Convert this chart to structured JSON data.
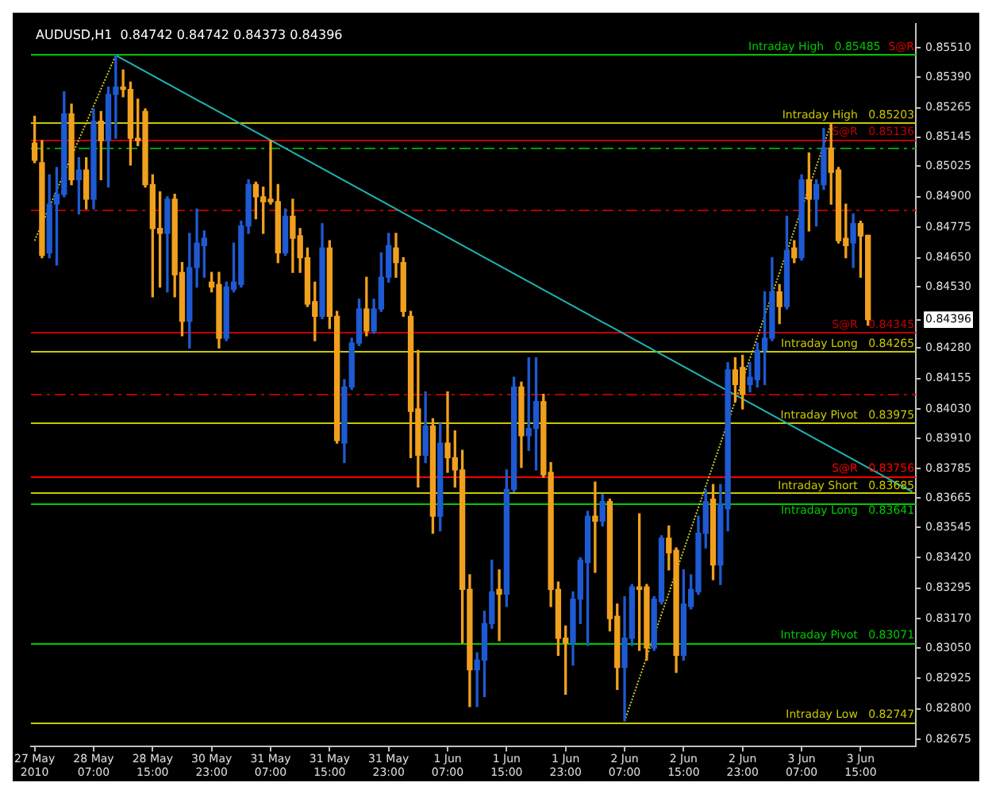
{
  "chart_data": {
    "type": "candlestick",
    "title": "AUDUSD,H1  0.84742 0.84742 0.84373 0.84396",
    "categories": [
      "27 May 2010",
      null,
      null,
      null,
      null,
      null,
      null,
      null,
      "28 May 07:00",
      null,
      null,
      null,
      null,
      null,
      null,
      null,
      "28 May 15:00",
      null,
      null,
      null,
      null,
      null,
      null,
      null,
      "30 May 23:00",
      null,
      null,
      null,
      null,
      null,
      null,
      null,
      "31 May 07:00",
      null,
      null,
      null,
      null,
      null,
      null,
      null,
      "31 May 15:00",
      null,
      null,
      null,
      null,
      null,
      null,
      null,
      "31 May 23:00",
      null,
      null,
      null,
      null,
      null,
      null,
      null,
      "1 Jun 07:00",
      null,
      null,
      null,
      null,
      null,
      null,
      null,
      "1 Jun 15:00",
      null,
      null,
      null,
      null,
      null,
      null,
      null,
      "1 Jun 23:00",
      null,
      null,
      null,
      null,
      null,
      null,
      null,
      "2 Jun 07:00",
      null,
      null,
      null,
      null,
      null,
      null,
      null,
      "2 Jun 15:00",
      null,
      null,
      null,
      null,
      null,
      null,
      null,
      "2 Jun 23:00",
      null,
      null,
      null,
      null,
      null,
      null,
      null,
      "3 Jun 07:00",
      null,
      null,
      null,
      null,
      null,
      null,
      null,
      "3 Jun 15:00",
      null,
      null,
      null,
      null,
      null,
      null,
      null
    ],
    "ohlc": [
      [
        0.8512,
        0.8523,
        0.8504,
        0.8505
      ],
      [
        0.8504,
        0.8513,
        0.8465,
        0.8466
      ],
      [
        0.8467,
        0.8499,
        0.8465,
        0.8487
      ],
      [
        0.8487,
        0.8502,
        0.8462,
        0.8491
      ],
      [
        0.8491,
        0.8533,
        0.849,
        0.8524
      ],
      [
        0.8524,
        0.8528,
        0.8495,
        0.8497
      ],
      [
        0.8497,
        0.8506,
        0.8483,
        0.8501
      ],
      [
        0.8501,
        0.8506,
        0.8485,
        0.8489
      ],
      [
        0.8489,
        0.8526,
        0.8485,
        0.8521
      ],
      [
        0.8521,
        0.8525,
        0.8497,
        0.8513
      ],
      [
        0.8513,
        0.8535,
        0.8494,
        0.8532
      ],
      [
        0.8532,
        0.8548,
        0.8514,
        0.8535
      ],
      [
        0.8535,
        0.8542,
        0.8531,
        0.8534
      ],
      [
        0.8534,
        0.8537,
        0.8503,
        0.8514
      ],
      [
        0.8514,
        0.853,
        0.8511,
        0.8513
      ],
      [
        0.8525,
        0.8526,
        0.8494,
        0.8495
      ],
      [
        0.8495,
        0.8499,
        0.8449,
        0.8477
      ],
      [
        0.8477,
        0.8492,
        0.8453,
        0.8475
      ],
      [
        0.8475,
        0.849,
        0.8451,
        0.8489
      ],
      [
        0.8489,
        0.8491,
        0.8449,
        0.8458
      ],
      [
        0.8459,
        0.8463,
        0.8433,
        0.8439
      ],
      [
        0.8439,
        0.8475,
        0.8428,
        0.8461
      ],
      [
        0.8461,
        0.8485,
        0.8453,
        0.8471
      ],
      [
        0.847,
        0.8476,
        0.8457,
        0.8473
      ],
      [
        0.8455,
        0.8459,
        0.8451,
        0.8453
      ],
      [
        0.8454,
        0.8459,
        0.8428,
        0.8432
      ],
      [
        0.8432,
        0.8455,
        0.8431,
        0.8453
      ],
      [
        0.8452,
        0.8471,
        0.8451,
        0.8455
      ],
      [
        0.8454,
        0.848,
        0.8453,
        0.8478
      ],
      [
        0.8478,
        0.8497,
        0.8475,
        0.8495
      ],
      [
        0.8495,
        0.8496,
        0.8481,
        0.849
      ],
      [
        0.849,
        0.8494,
        0.8475,
        0.8488
      ],
      [
        0.8489,
        0.8513,
        0.8487,
        0.8488
      ],
      [
        0.8488,
        0.8495,
        0.8463,
        0.8467
      ],
      [
        0.8467,
        0.8485,
        0.8466,
        0.8482
      ],
      [
        0.8482,
        0.8489,
        0.8459,
        0.8473
      ],
      [
        0.8474,
        0.8477,
        0.8459,
        0.8465
      ],
      [
        0.8465,
        0.8469,
        0.8445,
        0.8446
      ],
      [
        0.8447,
        0.8455,
        0.8431,
        0.8441
      ],
      [
        0.8441,
        0.8479,
        0.844,
        0.8469
      ],
      [
        0.8469,
        0.8472,
        0.8436,
        0.8441
      ],
      [
        0.8441,
        0.8443,
        0.8389,
        0.839
      ],
      [
        0.8389,
        0.8415,
        0.8381,
        0.8412
      ],
      [
        0.8412,
        0.8432,
        0.8411,
        0.843
      ],
      [
        0.843,
        0.8448,
        0.8429,
        0.8444
      ],
      [
        0.8444,
        0.8457,
        0.8433,
        0.8435
      ],
      [
        0.8435,
        0.8448,
        0.8434,
        0.8444
      ],
      [
        0.8444,
        0.8467,
        0.8443,
        0.8457
      ],
      [
        0.8457,
        0.8475,
        0.8455,
        0.847
      ],
      [
        0.8469,
        0.8475,
        0.8457,
        0.8463
      ],
      [
        0.8463,
        0.8465,
        0.8441,
        0.8443
      ],
      [
        0.8441,
        0.8443,
        0.8383,
        0.8402
      ],
      [
        0.8403,
        0.8427,
        0.8371,
        0.8384
      ],
      [
        0.8384,
        0.841,
        0.8381,
        0.8396
      ],
      [
        0.8396,
        0.8399,
        0.8352,
        0.8359
      ],
      [
        0.8359,
        0.8397,
        0.8353,
        0.8389
      ],
      [
        0.8389,
        0.841,
        0.8377,
        0.8383
      ],
      [
        0.8383,
        0.8394,
        0.8371,
        0.8378
      ],
      [
        0.8378,
        0.8386,
        0.8307,
        0.8329
      ],
      [
        0.8329,
        0.8335,
        0.8281,
        0.8296
      ],
      [
        0.8296,
        0.8303,
        0.8281,
        0.83
      ],
      [
        0.83,
        0.832,
        0.8285,
        0.8315
      ],
      [
        0.8315,
        0.8341,
        0.8313,
        0.8328
      ],
      [
        0.8329,
        0.8337,
        0.8308,
        0.8327
      ],
      [
        0.8327,
        0.8378,
        0.8322,
        0.837
      ],
      [
        0.837,
        0.8416,
        0.8369,
        0.8412
      ],
      [
        0.8412,
        0.8414,
        0.8379,
        0.8392
      ],
      [
        0.8392,
        0.8424,
        0.8386,
        0.8395
      ],
      [
        0.8395,
        0.8424,
        0.8378,
        0.8406
      ],
      [
        0.8406,
        0.8409,
        0.8375,
        0.8376
      ],
      [
        0.8377,
        0.8381,
        0.8322,
        0.8329
      ],
      [
        0.8329,
        0.8332,
        0.8302,
        0.8309
      ],
      [
        0.8309,
        0.8314,
        0.8286,
        0.8307
      ],
      [
        0.8307,
        0.8328,
        0.8298,
        0.8325
      ],
      [
        0.8325,
        0.8342,
        0.8315,
        0.8341
      ],
      [
        0.834,
        0.8361,
        0.8306,
        0.8359
      ],
      [
        0.8359,
        0.8373,
        0.8336,
        0.8357
      ],
      [
        0.8357,
        0.8368,
        0.8355,
        0.8365
      ],
      [
        0.8365,
        0.8366,
        0.8312,
        0.8317
      ],
      [
        0.8318,
        0.8323,
        0.8288,
        0.8297
      ],
      [
        0.8297,
        0.8326,
        0.8275,
        0.8309
      ],
      [
        0.8309,
        0.8331,
        0.8306,
        0.833
      ],
      [
        0.833,
        0.836,
        0.8304,
        0.8329
      ],
      [
        0.833,
        0.8331,
        0.83,
        0.8305
      ],
      [
        0.8305,
        0.8326,
        0.8304,
        0.8325
      ],
      [
        0.8324,
        0.8351,
        0.8323,
        0.835
      ],
      [
        0.835,
        0.8355,
        0.8337,
        0.8344
      ],
      [
        0.8345,
        0.8346,
        0.8295,
        0.8302
      ],
      [
        0.8302,
        0.8337,
        0.83,
        0.8323
      ],
      [
        0.8322,
        0.8335,
        0.8321,
        0.8329
      ],
      [
        0.8328,
        0.8359,
        0.8327,
        0.8352
      ],
      [
        0.8352,
        0.837,
        0.8346,
        0.8365
      ],
      [
        0.8366,
        0.8372,
        0.8333,
        0.8339
      ],
      [
        0.8339,
        0.8372,
        0.8331,
        0.8364
      ],
      [
        0.8362,
        0.8422,
        0.8353,
        0.8419
      ],
      [
        0.8419,
        0.8424,
        0.8406,
        0.8413
      ],
      [
        0.842,
        0.8425,
        0.8403,
        0.8409
      ],
      [
        0.8413,
        0.8422,
        0.841,
        0.8416
      ],
      [
        0.8415,
        0.843,
        0.8412,
        0.8427
      ],
      [
        0.8427,
        0.8451,
        0.8413,
        0.8432
      ],
      [
        0.8432,
        0.8465,
        0.8431,
        0.8451
      ],
      [
        0.8451,
        0.8454,
        0.8438,
        0.8445
      ],
      [
        0.8445,
        0.8482,
        0.8444,
        0.8468
      ],
      [
        0.8469,
        0.8472,
        0.8463,
        0.8465
      ],
      [
        0.8465,
        0.8499,
        0.8464,
        0.8497
      ],
      [
        0.8497,
        0.8508,
        0.8476,
        0.8489
      ],
      [
        0.8489,
        0.8497,
        0.8478,
        0.8495
      ],
      [
        0.8495,
        0.8518,
        0.8493,
        0.851
      ],
      [
        0.851,
        0.852,
        0.8487,
        0.85
      ],
      [
        0.8501,
        0.8502,
        0.8471,
        0.8472
      ],
      [
        0.8473,
        0.8487,
        0.8465,
        0.847
      ],
      [
        0.8471,
        0.8483,
        0.8461,
        0.8479
      ],
      [
        0.8479,
        0.848,
        0.8457,
        0.8474
      ],
      [
        0.84742,
        0.84742,
        0.84373,
        0.84396
      ],
      null,
      null,
      null,
      null,
      null,
      null
    ],
    "colors": [
      "#f0a01e",
      "#f0a01e",
      "#1e5ad2",
      "#1e5ad2",
      "#1e5ad2",
      "#f0a01e",
      "#1e5ad2",
      "#f0a01e",
      "#1e5ad2",
      "#f0a01e",
      "#1e5ad2",
      "#1e5ad2",
      "#f0a01e",
      "#f0a01e",
      "#f0a01e",
      "#f0a01e",
      "#f0a01e",
      "#f0a01e",
      "#1e5ad2",
      "#f0a01e",
      "#f0a01e",
      "#1e5ad2",
      "#1e5ad2",
      "#1e5ad2",
      "#f0a01e",
      "#f0a01e",
      "#1e5ad2",
      "#1e5ad2",
      "#1e5ad2",
      "#1e5ad2",
      "#f0a01e",
      "#f0a01e",
      "#f0a01e",
      "#f0a01e",
      "#1e5ad2",
      "#f0a01e",
      "#f0a01e",
      "#f0a01e",
      "#f0a01e",
      "#1e5ad2",
      "#f0a01e",
      "#f0a01e",
      "#1e5ad2",
      "#1e5ad2",
      "#1e5ad2",
      "#f0a01e",
      "#1e5ad2",
      "#1e5ad2",
      "#1e5ad2",
      "#f0a01e",
      "#f0a01e",
      "#f0a01e",
      "#f0a01e",
      "#1e5ad2",
      "#f0a01e",
      "#1e5ad2",
      "#f0a01e",
      "#f0a01e",
      "#f0a01e",
      "#f0a01e",
      "#1e5ad2",
      "#1e5ad2",
      "#1e5ad2",
      "#f0a01e",
      "#1e5ad2",
      "#1e5ad2",
      "#f0a01e",
      "#1e5ad2",
      "#1e5ad2",
      "#f0a01e",
      "#f0a01e",
      "#f0a01e",
      "#f0a01e",
      "#1e5ad2",
      "#1e5ad2",
      "#1e5ad2",
      "#f0a01e",
      "#1e5ad2",
      "#f0a01e",
      "#f0a01e",
      "#1e5ad2",
      "#1e5ad2",
      "#f0a01e",
      "#f0a01e",
      "#1e5ad2",
      "#1e5ad2",
      "#f0a01e",
      "#f0a01e",
      "#1e5ad2",
      "#1e5ad2",
      "#1e5ad2",
      "#1e5ad2",
      "#f0a01e",
      "#1e5ad2",
      "#1e5ad2",
      "#f0a01e",
      "#f0a01e",
      "#1e5ad2",
      "#1e5ad2",
      "#1e5ad2",
      "#1e5ad2",
      "#f0a01e",
      "#1e5ad2",
      "#f0a01e",
      "#1e5ad2",
      "#f0a01e",
      "#1e5ad2",
      "#1e5ad2",
      "#f0a01e",
      "#f0a01e",
      "#f0a01e",
      "#1e5ad2",
      "#f0a01e",
      "#f0a01e",
      null,
      null,
      null,
      null,
      null,
      null
    ],
    "series": [
      {
        "type": "line",
        "color": "#20b4b4",
        "values": [
          null,
          null,
          null,
          null,
          null,
          null,
          null,
          null,
          null,
          null,
          null,
          0.8548,
          null,
          null,
          null,
          null,
          null,
          null,
          null,
          null,
          null,
          null,
          null,
          null,
          null,
          null,
          null,
          null,
          null,
          null,
          null,
          null,
          null,
          null,
          null,
          null,
          null,
          null,
          null,
          null,
          null,
          null,
          null,
          null,
          null,
          null,
          null,
          null,
          null,
          null,
          null,
          null,
          null,
          null,
          null,
          null,
          null,
          null,
          null,
          null,
          null,
          null,
          null,
          null,
          null,
          null,
          null,
          null,
          null,
          null,
          null,
          null,
          null,
          null,
          null,
          null,
          null,
          null,
          null,
          null,
          null,
          null,
          null,
          null,
          null,
          null,
          null,
          null,
          null,
          null,
          null,
          null,
          null,
          null,
          null,
          null,
          null,
          null,
          null,
          null,
          null,
          null,
          null,
          null,
          null,
          null,
          null,
          null,
          null,
          null,
          null,
          null,
          null,
          null,
          null,
          null,
          null,
          null,
          null,
          0.8369
        ]
      },
      {
        "type": "line",
        "color": "#c8c832",
        "line_style": "dotted",
        "values": [
          0.8472,
          null,
          null,
          null,
          null,
          null,
          null,
          null,
          null,
          null,
          null,
          0.8548,
          null,
          null,
          null,
          null,
          null,
          null,
          null,
          null,
          null,
          null,
          null,
          null,
          null,
          null,
          null,
          null,
          null,
          null,
          null,
          null,
          null,
          null,
          null,
          null,
          null,
          null,
          null,
          null,
          null,
          null,
          null,
          null,
          null,
          null,
          null,
          null,
          null,
          null,
          null,
          null,
          null,
          null,
          null,
          null,
          null,
          null,
          null,
          null,
          null,
          null,
          null,
          null,
          null,
          null,
          null,
          null,
          null,
          null,
          null,
          null,
          null,
          null,
          null,
          null,
          null,
          null,
          null,
          null,
          null,
          null,
          null,
          null,
          null,
          null,
          null,
          null,
          null,
          null,
          null,
          null,
          null,
          null,
          null,
          null,
          null,
          null,
          null,
          null,
          null,
          null,
          null,
          null,
          null,
          null,
          null,
          null,
          null,
          null,
          null,
          null,
          null,
          null,
          null,
          null,
          null,
          null,
          null,
          null
        ]
      },
      {
        "type": "line",
        "color": "#c8c832",
        "line_style": "dotted",
        "values": [
          null,
          null,
          null,
          null,
          null,
          null,
          null,
          null,
          null,
          null,
          null,
          null,
          null,
          null,
          null,
          null,
          null,
          null,
          null,
          null,
          null,
          null,
          null,
          null,
          null,
          null,
          null,
          null,
          null,
          null,
          null,
          null,
          null,
          null,
          null,
          null,
          null,
          null,
          null,
          null,
          null,
          null,
          null,
          null,
          null,
          null,
          null,
          null,
          null,
          null,
          null,
          null,
          null,
          null,
          null,
          null,
          null,
          null,
          null,
          null,
          null,
          null,
          null,
          null,
          null,
          null,
          null,
          null,
          null,
          null,
          null,
          null,
          null,
          null,
          null,
          null,
          null,
          null,
          null,
          null,
          0.8275,
          null,
          null,
          null,
          null,
          null,
          null,
          null,
          null,
          null,
          null,
          null,
          null,
          null,
          null,
          null,
          null,
          null,
          null,
          null,
          null,
          null,
          null,
          null,
          null,
          null,
          null,
          null,
          0.852,
          null,
          null,
          null,
          null,
          null,
          null,
          null,
          null,
          null,
          null,
          null
        ]
      }
    ],
    "ylim": [
      0.82645,
      0.85608
    ],
    "yticks": [
      {
        "value": 0.8551,
        "label": "0.85510"
      },
      {
        "value": 0.8539,
        "label": "0.85390"
      },
      {
        "value": 0.85265,
        "label": "0.85265"
      },
      {
        "value": 0.85145,
        "label": "0.85145"
      },
      {
        "value": 0.85025,
        "label": "0.85025"
      },
      {
        "value": 0.849,
        "label": "0.84900"
      },
      {
        "value": 0.84775,
        "label": "0.84775"
      },
      {
        "value": 0.8465,
        "label": "0.84650"
      },
      {
        "value": 0.8453,
        "label": "0.84530"
      },
      {
        "value": 0.84396,
        "label": "0.84396"
      },
      {
        "value": 0.8428,
        "label": "0.84280"
      },
      {
        "value": 0.84155,
        "label": "0.84155"
      },
      {
        "value": 0.8403,
        "label": "0.84030"
      },
      {
        "value": 0.8391,
        "label": "0.83910"
      },
      {
        "value": 0.83785,
        "label": "0.83785"
      },
      {
        "value": 0.83665,
        "label": "0.83665"
      },
      {
        "value": 0.83545,
        "label": "0.83545"
      },
      {
        "value": 0.8342,
        "label": "0.83420"
      },
      {
        "value": 0.83295,
        "label": "0.83295"
      },
      {
        "value": 0.8317,
        "label": "0.83170"
      },
      {
        "value": 0.8305,
        "label": "0.83050"
      },
      {
        "value": 0.82925,
        "label": "0.82925"
      },
      {
        "value": 0.828,
        "label": "0.82800"
      },
      {
        "value": 0.82675,
        "label": "0.82675"
      }
    ],
    "ref_lines": [
      {
        "axis": "y",
        "value": 0.85485,
        "label": "S@R",
        "color": "#e00000"
      },
      {
        "axis": "y",
        "value": 0.85485,
        "label": "Intraday High   0.85485",
        "color": "#00c800"
      },
      {
        "axis": "y",
        "value": 0.85203,
        "label": "Intraday High   0.85203",
        "color": "#c8c800"
      },
      {
        "axis": "y",
        "value": 0.85136,
        "label": "S@R   0.85136",
        "color": "#c00000"
      },
      {
        "axis": "y",
        "value": 0.851,
        "color": "#00a000",
        "line_style": "dashed"
      },
      {
        "axis": "y",
        "value": 0.8485,
        "color": "#b00000",
        "line_style": "dashed"
      },
      {
        "axis": "y",
        "value": 0.84345,
        "label": "S@R   0.84345",
        "color": "#c00000"
      },
      {
        "axis": "y",
        "value": 0.84265,
        "label": "Intraday Long   0.84265",
        "color": "#c8c800"
      },
      {
        "axis": "y",
        "value": 0.8409,
        "color": "#b00000",
        "line_style": "dashed"
      },
      {
        "axis": "y",
        "value": 0.83975,
        "label": "Intraday Pivot   0.83975",
        "color": "#c8c800"
      },
      {
        "axis": "y",
        "value": 0.83756,
        "label": "S@R   0.83756",
        "color": "#ff0000"
      },
      {
        "axis": "y",
        "value": 0.83685,
        "label": "Intraday Short   0.83685",
        "color": "#c8c800"
      },
      {
        "axis": "y",
        "value": 0.83641,
        "label": "Intraday Long   0.83641",
        "color": "#00c800"
      },
      {
        "axis": "y",
        "value": 0.83071,
        "label": "Intraday Pivot   0.83071",
        "color": "#00c800"
      },
      {
        "axis": "y",
        "value": 0.82747,
        "label": "Intraday Low   0.82747",
        "color": "#c8c800"
      }
    ]
  }
}
